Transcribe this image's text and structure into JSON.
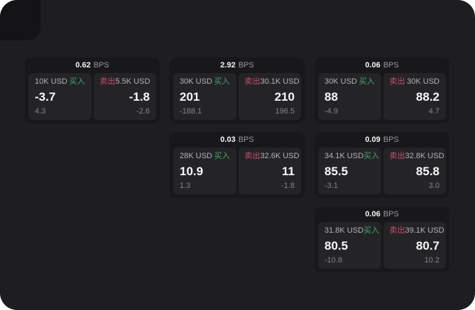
{
  "labels": {
    "bps_unit": "BPS",
    "buy": "买入",
    "sell": "卖出"
  },
  "colors": {
    "buy_green": "#3aad5f",
    "sell_red": "#cb4b64",
    "page_bg": "#1e1e20",
    "card_bg": "#18181a",
    "panel_bg": "#242427"
  },
  "cards": [
    {
      "bps": "0.62",
      "buy": {
        "amount": "10K USD",
        "price": "-3.7",
        "delta": "4.3"
      },
      "sell": {
        "amount": "5.5K USD",
        "price": "-1.8",
        "delta": "-2.6"
      }
    },
    {
      "bps": "2.92",
      "buy": {
        "amount": "30K USD",
        "price": "201",
        "delta": "-188.1"
      },
      "sell": {
        "amount": "30.1K USD",
        "price": "210",
        "delta": "196.5"
      }
    },
    {
      "bps": "0.06",
      "buy": {
        "amount": "30K USD",
        "price": "88",
        "delta": "-4.9"
      },
      "sell": {
        "amount": "30K USD",
        "price": "88.2",
        "delta": "4.7"
      }
    },
    {
      "bps": "0.03",
      "buy": {
        "amount": "28K USD",
        "price": "10.9",
        "delta": "1.3"
      },
      "sell": {
        "amount": "32.6K USD",
        "price": "11",
        "delta": "-1.8"
      }
    },
    {
      "bps": "0.09",
      "buy": {
        "amount": "34.1K USD",
        "price": "85.5",
        "delta": "-3.1"
      },
      "sell": {
        "amount": "32.8K USD",
        "price": "85.8",
        "delta": "3.0"
      }
    },
    {
      "bps": "0.06",
      "buy": {
        "amount": "31.8K USD",
        "price": "80.5",
        "delta": "-10.8"
      },
      "sell": {
        "amount": "39.1K USD",
        "price": "80.7",
        "delta": "10.2"
      }
    }
  ]
}
